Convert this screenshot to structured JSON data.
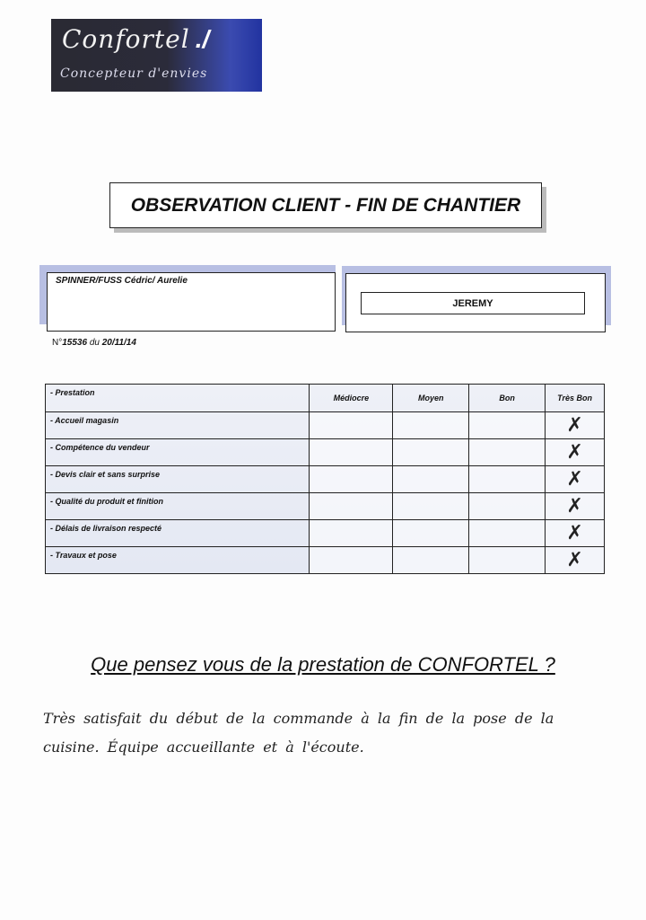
{
  "logo": {
    "brand": "Confortel",
    "mark": "./",
    "tagline": "Concepteur d'envies",
    "colors": [
      "#2a2a33",
      "#2233a0"
    ]
  },
  "title": "OBSERVATION CLIENT - FIN DE CHANTIER",
  "client": {
    "name": "SPINNER/FUSS Cédric/ Aurelie"
  },
  "agent": {
    "name": "JEREMY"
  },
  "order": {
    "prefix": "N°",
    "number": "15536",
    "du": "du",
    "date": "20/11/14"
  },
  "table": {
    "headers": [
      "- Prestation",
      "Médiocre",
      "Moyen",
      "Bon",
      "Très Bon"
    ],
    "rows": [
      {
        "label": "- Accueil magasin",
        "rating": "Très Bon",
        "mark": "✗"
      },
      {
        "label": "- Compétence du vendeur",
        "rating": "Très Bon",
        "mark": "✗"
      },
      {
        "label": "- Devis clair et sans surprise",
        "rating": "Très Bon",
        "mark": "✗"
      },
      {
        "label": "- Qualité du produit et finition",
        "rating": "Très Bon",
        "mark": "✗"
      },
      {
        "label": "- Délais de livraison respecté",
        "rating": "Très Bon",
        "mark": "✗"
      },
      {
        "label": "- Travaux et pose",
        "rating": "Très Bon",
        "mark": "✗"
      }
    ]
  },
  "question": "Que pensez vous de la prestation de CONFORTEL ?",
  "answer": {
    "line1": "Très satisfait du début de la commande à la fin de la pose de la",
    "line2": "cuisine. Équipe accueillante et à l'écoute."
  }
}
